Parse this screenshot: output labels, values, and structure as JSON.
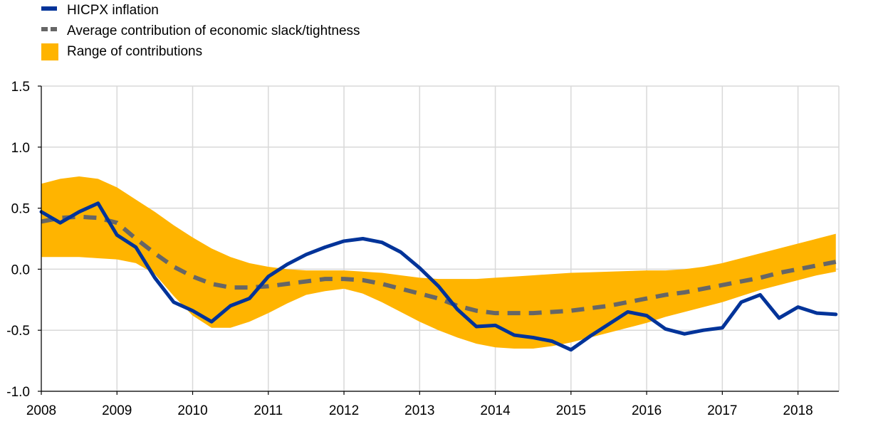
{
  "chart_data": {
    "type": "line",
    "title": "",
    "xlabel": "",
    "ylabel": "",
    "xlim": [
      2008,
      2018.54
    ],
    "ylim": [
      -1.0,
      1.5
    ],
    "x_ticks": [
      2008,
      2009,
      2010,
      2011,
      2012,
      2013,
      2014,
      2015,
      2016,
      2017,
      2018
    ],
    "x_tick_labels": [
      "2008",
      "2009",
      "2010",
      "2011",
      "2012",
      "2013",
      "2014",
      "2015",
      "2016",
      "2017",
      "2018"
    ],
    "y_ticks": [
      1.5,
      1.0,
      0.5,
      0.0,
      -0.5,
      -1.0
    ],
    "y_tick_labels": [
      "1.5",
      "1.0",
      "0.5",
      "0.0",
      "-0.5",
      "-1.0"
    ],
    "grid": true,
    "legend_position": "top-left",
    "colors": {
      "hicpx": "#003399",
      "average": "#666666",
      "range": "#ffb400",
      "grid": "#d9d9d9",
      "axis": "#000000"
    },
    "legend": [
      {
        "key": "hicpx",
        "label": "HICPX inflation",
        "style": "line"
      },
      {
        "key": "average",
        "label": "Average contribution of economic slack/tightness",
        "style": "dashed"
      },
      {
        "key": "range",
        "label": "Range of contributions",
        "style": "area"
      }
    ],
    "x": [
      2008.0,
      2008.25,
      2008.5,
      2008.75,
      2009.0,
      2009.25,
      2009.5,
      2009.75,
      2010.0,
      2010.25,
      2010.5,
      2010.75,
      2011.0,
      2011.25,
      2011.5,
      2011.75,
      2012.0,
      2012.25,
      2012.5,
      2012.75,
      2013.0,
      2013.25,
      2013.5,
      2013.75,
      2014.0,
      2014.25,
      2014.5,
      2014.75,
      2015.0,
      2015.25,
      2015.5,
      2015.75,
      2016.0,
      2016.25,
      2016.5,
      2016.75,
      2017.0,
      2017.25,
      2017.5,
      2017.75,
      2018.0,
      2018.25,
      2018.5
    ],
    "series": [
      {
        "name": "HICPX inflation",
        "key": "hicpx",
        "values": [
          0.47,
          0.38,
          0.47,
          0.54,
          0.28,
          0.18,
          -0.07,
          -0.27,
          -0.34,
          -0.43,
          -0.3,
          -0.24,
          -0.06,
          0.04,
          0.12,
          0.18,
          0.23,
          0.25,
          0.22,
          0.14,
          0.01,
          -0.14,
          -0.33,
          -0.47,
          -0.46,
          -0.54,
          -0.56,
          -0.59,
          -0.66,
          -0.55,
          -0.45,
          -0.35,
          -0.38,
          -0.49,
          -0.53,
          -0.5,
          -0.48,
          -0.27,
          -0.21,
          -0.4,
          -0.31,
          -0.36,
          -0.37
        ]
      },
      {
        "name": "Average contribution of economic slack/tightness",
        "key": "average",
        "values": [
          0.39,
          0.42,
          0.43,
          0.42,
          0.38,
          0.25,
          0.13,
          0.02,
          -0.06,
          -0.12,
          -0.15,
          -0.15,
          -0.14,
          -0.12,
          -0.1,
          -0.08,
          -0.08,
          -0.09,
          -0.12,
          -0.16,
          -0.2,
          -0.24,
          -0.3,
          -0.34,
          -0.36,
          -0.36,
          -0.36,
          -0.35,
          -0.34,
          -0.32,
          -0.3,
          -0.27,
          -0.24,
          -0.21,
          -0.19,
          -0.16,
          -0.13,
          -0.1,
          -0.07,
          -0.03,
          0.0,
          0.03,
          0.06
        ]
      },
      {
        "name": "Range of contributions (upper)",
        "key": "range_upper",
        "values": [
          0.7,
          0.74,
          0.76,
          0.74,
          0.67,
          0.57,
          0.47,
          0.36,
          0.26,
          0.17,
          0.1,
          0.05,
          0.02,
          0.0,
          -0.01,
          -0.01,
          -0.01,
          -0.02,
          -0.03,
          -0.05,
          -0.07,
          -0.08,
          -0.08,
          -0.08,
          -0.07,
          -0.06,
          -0.05,
          -0.04,
          -0.03,
          -0.025,
          -0.02,
          -0.015,
          -0.01,
          -0.01,
          0.0,
          0.02,
          0.05,
          0.09,
          0.13,
          0.17,
          0.21,
          0.25,
          0.29
        ]
      },
      {
        "name": "Range of contributions (lower)",
        "key": "range_lower",
        "values": [
          0.1,
          0.1,
          0.1,
          0.09,
          0.08,
          0.05,
          -0.04,
          -0.22,
          -0.38,
          -0.48,
          -0.48,
          -0.43,
          -0.36,
          -0.28,
          -0.21,
          -0.18,
          -0.16,
          -0.2,
          -0.27,
          -0.35,
          -0.43,
          -0.5,
          -0.56,
          -0.61,
          -0.64,
          -0.65,
          -0.65,
          -0.63,
          -0.6,
          -0.56,
          -0.52,
          -0.48,
          -0.44,
          -0.39,
          -0.35,
          -0.31,
          -0.27,
          -0.22,
          -0.17,
          -0.13,
          -0.09,
          -0.05,
          -0.02
        ]
      }
    ]
  }
}
